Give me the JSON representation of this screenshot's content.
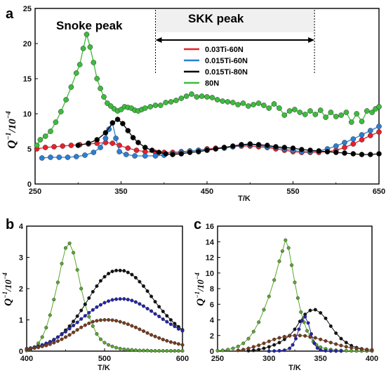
{
  "chart_data": [
    {
      "type": "line",
      "panel_letter": "a",
      "xlabel": "T/K",
      "ylabel_main": "Q",
      "ylabel_sup": "−1",
      "ylabel_tail": "/10",
      "ylabel_exp": "−4",
      "xlim": [
        250,
        650
      ],
      "ylim": [
        0,
        25
      ],
      "xticks": [
        250,
        350,
        450,
        550,
        650
      ],
      "yticks": [
        0,
        5,
        10,
        15,
        20,
        25
      ],
      "annotations": {
        "snoke": "Snoke peak",
        "skk": "SKK peak"
      },
      "skk_range": [
        390,
        575
      ],
      "legend": "upper-center",
      "series": [
        {
          "name": "0.03Ti-60N",
          "color": "#e8202a",
          "x": [
            252,
            262,
            272,
            282,
            292,
            302,
            312,
            322,
            332,
            340,
            348,
            358,
            368,
            378,
            390,
            400,
            410,
            420,
            430,
            440,
            450,
            460,
            470,
            480,
            490,
            500,
            510,
            520,
            530,
            540,
            550,
            560,
            570,
            580,
            590,
            600,
            610,
            620,
            630,
            640,
            650
          ],
          "y": [
            5.0,
            5.2,
            5.3,
            5.4,
            5.5,
            5.6,
            5.7,
            5.8,
            5.9,
            5.8,
            5.5,
            5.1,
            4.8,
            4.6,
            4.5,
            4.5,
            4.5,
            4.6,
            4.7,
            4.8,
            5.0,
            5.1,
            5.2,
            5.3,
            5.4,
            5.4,
            5.3,
            5.2,
            5.0,
            4.8,
            4.6,
            4.5,
            4.5,
            4.5,
            4.6,
            4.8,
            5.2,
            5.7,
            6.3,
            6.9,
            7.4
          ]
        },
        {
          "name": "0.015Ti-60N",
          "color": "#2a7fd4",
          "x": [
            258,
            268,
            278,
            288,
            298,
            308,
            318,
            326,
            332,
            336,
            340,
            344,
            348,
            356,
            366,
            378,
            390,
            400,
            410,
            420,
            430,
            440,
            450,
            460,
            470,
            480,
            490,
            500,
            510,
            520,
            530,
            540,
            550,
            560,
            570,
            580,
            590,
            600,
            610,
            620,
            630,
            640,
            650
          ],
          "y": [
            3.7,
            3.8,
            3.8,
            3.8,
            3.9,
            4.1,
            4.5,
            5.2,
            6.5,
            7.8,
            8.7,
            6.5,
            4.6,
            4.2,
            4.0,
            4.0,
            4.0,
            4.1,
            4.3,
            4.5,
            4.7,
            4.8,
            4.9,
            5.0,
            5.1,
            5.3,
            5.5,
            5.6,
            5.5,
            5.3,
            5.2,
            5.0,
            4.8,
            4.6,
            4.6,
            4.7,
            5.0,
            5.4,
            5.9,
            6.4,
            7.0,
            7.6,
            8.2
          ]
        },
        {
          "name": "0.015Ti-80N",
          "color": "#000000",
          "x": [
            300,
            312,
            322,
            332,
            340,
            346,
            352,
            358,
            364,
            370,
            378,
            386,
            394,
            402,
            410,
            420,
            430,
            440,
            450,
            460,
            470,
            480,
            490,
            500,
            510,
            520,
            530,
            540,
            550,
            560,
            570,
            580,
            590,
            600,
            610,
            620,
            630,
            640,
            650
          ],
          "y": [
            5.5,
            5.8,
            6.3,
            7.3,
            8.7,
            9.2,
            8.6,
            7.6,
            6.6,
            5.9,
            5.2,
            4.8,
            4.5,
            4.3,
            4.2,
            4.3,
            4.5,
            4.6,
            4.8,
            5.0,
            5.2,
            5.4,
            5.6,
            5.7,
            5.6,
            5.5,
            5.3,
            5.2,
            5.1,
            4.9,
            4.8,
            4.7,
            4.6,
            4.5,
            4.4,
            4.3,
            4.2,
            4.2,
            4.3
          ]
        },
        {
          "name": "80N",
          "color": "#3dbb3d",
          "x": [
            252,
            256,
            262,
            268,
            274,
            280,
            286,
            292,
            298,
            302,
            306,
            310,
            314,
            318,
            322,
            326,
            330,
            334,
            338,
            342,
            346,
            350,
            354,
            358,
            362,
            366,
            370,
            374,
            378,
            384,
            390,
            396,
            402,
            408,
            414,
            420,
            426,
            432,
            438,
            444,
            450,
            456,
            462,
            468,
            474,
            480,
            486,
            492,
            498,
            504,
            510,
            516,
            522,
            528,
            534,
            540,
            546,
            552,
            558,
            564,
            570,
            576,
            582,
            588,
            594,
            600,
            606,
            612,
            618,
            624,
            630,
            636,
            642,
            646,
            650
          ],
          "y": [
            5.5,
            6.3,
            6.8,
            7.5,
            8.8,
            10.3,
            12.0,
            13.8,
            15.8,
            17.0,
            19.3,
            21.3,
            19.5,
            17.3,
            15.0,
            13.6,
            12.4,
            11.5,
            11.1,
            10.7,
            10.4,
            10.6,
            11.0,
            10.9,
            10.8,
            10.5,
            10.4,
            10.6,
            10.8,
            11.0,
            11.2,
            11.2,
            11.6,
            11.7,
            11.9,
            12.2,
            12.5,
            12.8,
            12.4,
            12.5,
            12.4,
            12.3,
            12.0,
            11.8,
            11.7,
            11.6,
            11.3,
            11.5,
            11.1,
            11.3,
            11.5,
            11.2,
            10.8,
            11.4,
            10.8,
            9.8,
            10.4,
            10.6,
            10.2,
            9.9,
            10.4,
            9.9,
            10.5,
            9.5,
            10.2,
            9.6,
            9.8,
            10.2,
            8.8,
            10.0,
            8.9,
            10.4,
            10.2,
            10.7,
            11.0
          ]
        }
      ]
    },
    {
      "type": "line",
      "panel_letter": "b",
      "xlabel": "T/K",
      "ylabel_main": "Q",
      "ylabel_sup": "−1",
      "ylabel_tail": "/10",
      "ylabel_exp": "−4",
      "xlim": [
        400,
        600
      ],
      "ylim": [
        0,
        4
      ],
      "xticks": [
        400,
        500,
        600
      ],
      "yticks": [
        0,
        1,
        2,
        3,
        4
      ],
      "series": [
        {
          "color": "#5aa830",
          "x": [
            400,
            405,
            410,
            415,
            420,
            425,
            430,
            435,
            440,
            445,
            450,
            455,
            460,
            465,
            470,
            475,
            480,
            485,
            490,
            495,
            500,
            505,
            510,
            515,
            520,
            525,
            530,
            535,
            540,
            545,
            550,
            555,
            560,
            565,
            570,
            575,
            580,
            585,
            590,
            595,
            600
          ],
          "y": [
            0.02,
            0.05,
            0.12,
            0.25,
            0.45,
            0.75,
            1.15,
            1.65,
            2.2,
            2.8,
            3.3,
            3.45,
            3.15,
            2.6,
            2.0,
            1.5,
            1.1,
            0.8,
            0.55,
            0.38,
            0.27,
            0.2,
            0.15,
            0.11,
            0.08,
            0.06,
            0.05,
            0.04,
            0.03,
            0.02,
            0.02,
            0.02,
            0.01,
            0.01,
            0.01,
            0.01,
            0.01,
            0.01,
            0.01,
            0.01,
            0.01
          ]
        },
        {
          "color": "#111111",
          "x": [
            400,
            405,
            410,
            415,
            420,
            425,
            430,
            435,
            440,
            445,
            450,
            455,
            460,
            465,
            470,
            475,
            480,
            485,
            490,
            495,
            500,
            505,
            510,
            515,
            520,
            525,
            530,
            535,
            540,
            545,
            550,
            555,
            560,
            565,
            570,
            575,
            580,
            585,
            590,
            595,
            600
          ],
          "y": [
            0.05,
            0.07,
            0.1,
            0.13,
            0.17,
            0.22,
            0.28,
            0.35,
            0.45,
            0.55,
            0.67,
            0.8,
            0.95,
            1.12,
            1.3,
            1.5,
            1.7,
            1.9,
            2.08,
            2.25,
            2.38,
            2.48,
            2.55,
            2.58,
            2.58,
            2.57,
            2.52,
            2.45,
            2.35,
            2.22,
            2.08,
            1.92,
            1.75,
            1.58,
            1.42,
            1.27,
            1.13,
            1.0,
            0.88,
            0.78,
            0.68
          ]
        },
        {
          "color": "#2323b0",
          "x": [
            400,
            405,
            410,
            415,
            420,
            425,
            430,
            435,
            440,
            445,
            450,
            455,
            460,
            465,
            470,
            475,
            480,
            485,
            490,
            495,
            500,
            505,
            510,
            515,
            520,
            525,
            530,
            535,
            540,
            545,
            550,
            555,
            560,
            565,
            570,
            575,
            580,
            585,
            590,
            595,
            600
          ],
          "y": [
            0.08,
            0.1,
            0.13,
            0.16,
            0.2,
            0.25,
            0.3,
            0.37,
            0.45,
            0.53,
            0.62,
            0.72,
            0.82,
            0.92,
            1.03,
            1.13,
            1.23,
            1.32,
            1.41,
            1.48,
            1.55,
            1.6,
            1.64,
            1.66,
            1.67,
            1.67,
            1.65,
            1.62,
            1.57,
            1.51,
            1.44,
            1.36,
            1.28,
            1.19,
            1.11,
            1.02,
            0.94,
            0.86,
            0.79,
            0.71,
            0.65
          ]
        },
        {
          "color": "#7a3a1a",
          "x": [
            400,
            405,
            410,
            415,
            420,
            425,
            430,
            435,
            440,
            445,
            450,
            455,
            460,
            465,
            470,
            475,
            480,
            485,
            490,
            495,
            500,
            505,
            510,
            515,
            520,
            525,
            530,
            535,
            540,
            545,
            550,
            555,
            560,
            565,
            570,
            575,
            580,
            585,
            590,
            595,
            600
          ],
          "y": [
            0.06,
            0.08,
            0.1,
            0.12,
            0.15,
            0.18,
            0.22,
            0.27,
            0.32,
            0.38,
            0.45,
            0.52,
            0.6,
            0.68,
            0.76,
            0.83,
            0.89,
            0.94,
            0.97,
            0.99,
            1.0,
            1.0,
            0.99,
            0.97,
            0.94,
            0.9,
            0.86,
            0.81,
            0.76,
            0.7,
            0.64,
            0.58,
            0.52,
            0.47,
            0.42,
            0.37,
            0.33,
            0.29,
            0.26,
            0.23,
            0.2
          ]
        }
      ]
    },
    {
      "type": "line",
      "panel_letter": "c",
      "xlabel": "T/K",
      "ylabel_main": "Q",
      "ylabel_sup": "−1",
      "ylabel_tail": "/10",
      "ylabel_exp": "−4",
      "xlim": [
        250,
        400
      ],
      "ylim": [
        0,
        16
      ],
      "xticks": [
        250,
        300,
        350,
        400
      ],
      "yticks": [
        0,
        2,
        4,
        6,
        8,
        10,
        12,
        14,
        16
      ],
      "series": [
        {
          "color": "#5aa830",
          "x": [
            250,
            255,
            260,
            265,
            270,
            275,
            280,
            285,
            290,
            295,
            300,
            305,
            310,
            313,
            316,
            319,
            322,
            325,
            328,
            331,
            334,
            337,
            340,
            343,
            346,
            350,
            355,
            360,
            365,
            370,
            375,
            380,
            385,
            390,
            395,
            400
          ],
          "y": [
            0.05,
            0.1,
            0.2,
            0.35,
            0.6,
            1.0,
            1.6,
            2.5,
            3.7,
            5.3,
            7.0,
            9.1,
            11.5,
            12.8,
            14.2,
            13.2,
            11.0,
            8.8,
            6.8,
            5.0,
            3.7,
            2.6,
            1.8,
            1.2,
            0.8,
            0.5,
            0.3,
            0.2,
            0.12,
            0.08,
            0.05,
            0.04,
            0.03,
            0.02,
            0.02,
            0.01
          ]
        },
        {
          "color": "#111111",
          "x": [
            280,
            285,
            290,
            295,
            300,
            305,
            310,
            315,
            320,
            325,
            330,
            335,
            340,
            345,
            350,
            355,
            360,
            365,
            370,
            375,
            380,
            385,
            390,
            395,
            400
          ],
          "y": [
            0.05,
            0.1,
            0.2,
            0.35,
            0.55,
            0.8,
            1.1,
            1.5,
            2.0,
            2.8,
            3.8,
            4.7,
            5.2,
            5.3,
            4.9,
            4.2,
            3.2,
            2.3,
            1.6,
            1.1,
            0.7,
            0.45,
            0.3,
            0.2,
            0.15
          ]
        },
        {
          "color": "#2323b0",
          "x": [
            300,
            305,
            310,
            315,
            320,
            323,
            326,
            329,
            332,
            335,
            338,
            341,
            344,
            347,
            350,
            355,
            360,
            365,
            370
          ],
          "y": [
            0.0,
            0.02,
            0.05,
            0.12,
            0.35,
            0.8,
            1.6,
            2.8,
            3.9,
            4.4,
            3.6,
            2.2,
            1.0,
            0.4,
            0.15,
            0.05,
            0.02,
            0.01,
            0.01
          ]
        },
        {
          "color": "#7a3a1a",
          "x": [
            270,
            275,
            280,
            285,
            290,
            295,
            300,
            305,
            310,
            315,
            320,
            325,
            330,
            335,
            340,
            345,
            350,
            355,
            360,
            365,
            370,
            375,
            380,
            385,
            390,
            395,
            400
          ],
          "y": [
            0.1,
            0.2,
            0.35,
            0.55,
            0.75,
            1.0,
            1.25,
            1.5,
            1.7,
            1.85,
            1.95,
            2.0,
            2.0,
            1.95,
            1.85,
            1.7,
            1.5,
            1.3,
            1.1,
            0.9,
            0.72,
            0.56,
            0.43,
            0.33,
            0.25,
            0.2,
            0.15
          ]
        }
      ]
    }
  ]
}
